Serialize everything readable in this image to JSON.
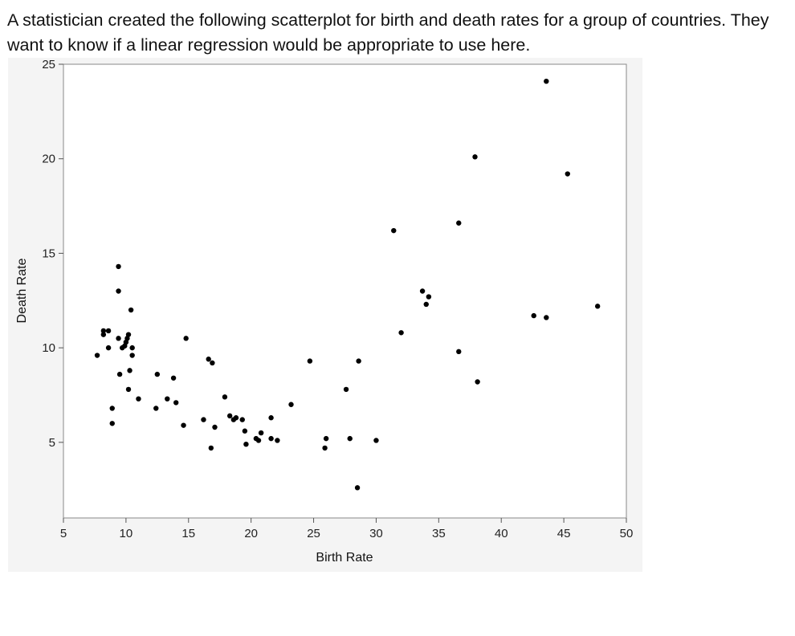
{
  "question": {
    "text": "A statistician created the following scatterplot for birth and death rates for a group of countries. They want to know if a linear regression would be appropriate to use here."
  },
  "chart_data": {
    "type": "scatter",
    "xlabel": "Birth Rate",
    "ylabel": "Death Rate",
    "xlim": [
      5,
      50
    ],
    "ylim": [
      1,
      25
    ],
    "xticks": [
      5,
      10,
      15,
      20,
      25,
      30,
      35,
      40,
      45,
      50
    ],
    "yticks": [
      5,
      10,
      15,
      20,
      25
    ],
    "grid": false,
    "point_color": "#000000",
    "points": [
      {
        "x": 7.7,
        "y": 9.6
      },
      {
        "x": 8.2,
        "y": 10.9
      },
      {
        "x": 8.2,
        "y": 10.7
      },
      {
        "x": 8.6,
        "y": 10.9
      },
      {
        "x": 8.6,
        "y": 10.0
      },
      {
        "x": 8.9,
        "y": 6.8
      },
      {
        "x": 8.9,
        "y": 6.0
      },
      {
        "x": 9.4,
        "y": 14.3
      },
      {
        "x": 9.4,
        "y": 13.0
      },
      {
        "x": 9.4,
        "y": 10.5
      },
      {
        "x": 9.5,
        "y": 8.6
      },
      {
        "x": 9.7,
        "y": 10.0
      },
      {
        "x": 9.9,
        "y": 10.1
      },
      {
        "x": 10.0,
        "y": 10.3
      },
      {
        "x": 10.1,
        "y": 10.5
      },
      {
        "x": 10.2,
        "y": 10.7
      },
      {
        "x": 10.2,
        "y": 7.8
      },
      {
        "x": 10.3,
        "y": 8.8
      },
      {
        "x": 10.4,
        "y": 12.0
      },
      {
        "x": 10.5,
        "y": 10.0
      },
      {
        "x": 10.5,
        "y": 9.6
      },
      {
        "x": 11.0,
        "y": 7.3
      },
      {
        "x": 12.4,
        "y": 6.8
      },
      {
        "x": 12.5,
        "y": 8.6
      },
      {
        "x": 13.3,
        "y": 7.3
      },
      {
        "x": 13.8,
        "y": 8.4
      },
      {
        "x": 14.0,
        "y": 7.1
      },
      {
        "x": 14.6,
        "y": 5.9
      },
      {
        "x": 14.8,
        "y": 10.5
      },
      {
        "x": 16.2,
        "y": 6.2
      },
      {
        "x": 16.6,
        "y": 9.4
      },
      {
        "x": 16.9,
        "y": 9.2
      },
      {
        "x": 16.8,
        "y": 4.7
      },
      {
        "x": 17.1,
        "y": 5.8
      },
      {
        "x": 17.9,
        "y": 7.4
      },
      {
        "x": 18.3,
        "y": 6.4
      },
      {
        "x": 18.6,
        "y": 6.2
      },
      {
        "x": 18.8,
        "y": 6.3
      },
      {
        "x": 19.3,
        "y": 6.2
      },
      {
        "x": 19.5,
        "y": 5.6
      },
      {
        "x": 19.6,
        "y": 4.9
      },
      {
        "x": 20.4,
        "y": 5.2
      },
      {
        "x": 20.6,
        "y": 5.1
      },
      {
        "x": 20.8,
        "y": 5.5
      },
      {
        "x": 21.6,
        "y": 6.3
      },
      {
        "x": 21.6,
        "y": 5.2
      },
      {
        "x": 22.1,
        "y": 5.1
      },
      {
        "x": 23.2,
        "y": 7.0
      },
      {
        "x": 24.7,
        "y": 9.3
      },
      {
        "x": 25.9,
        "y": 4.7
      },
      {
        "x": 26.0,
        "y": 5.2
      },
      {
        "x": 27.6,
        "y": 7.8
      },
      {
        "x": 27.9,
        "y": 5.2
      },
      {
        "x": 28.5,
        "y": 2.6
      },
      {
        "x": 28.6,
        "y": 9.3
      },
      {
        "x": 30.0,
        "y": 5.1
      },
      {
        "x": 31.4,
        "y": 16.2
      },
      {
        "x": 32.0,
        "y": 10.8
      },
      {
        "x": 33.7,
        "y": 13.0
      },
      {
        "x": 34.0,
        "y": 12.3
      },
      {
        "x": 34.2,
        "y": 12.7
      },
      {
        "x": 36.6,
        "y": 16.6
      },
      {
        "x": 36.6,
        "y": 9.8
      },
      {
        "x": 37.9,
        "y": 20.1
      },
      {
        "x": 38.1,
        "y": 8.2
      },
      {
        "x": 42.6,
        "y": 11.7
      },
      {
        "x": 43.6,
        "y": 24.1
      },
      {
        "x": 43.6,
        "y": 11.6
      },
      {
        "x": 45.3,
        "y": 19.2
      },
      {
        "x": 47.7,
        "y": 12.2
      }
    ]
  }
}
